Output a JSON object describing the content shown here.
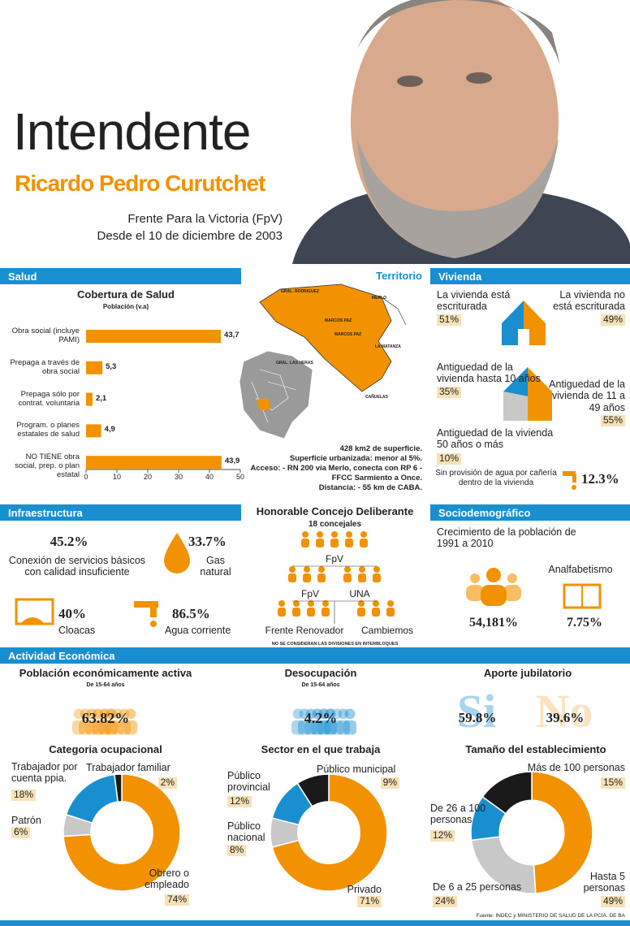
{
  "header": {
    "title": "Intendente",
    "name": "Ricardo Pedro Curutchet",
    "party": "Frente Para la Victoria (FpV)",
    "since": "Desde el 10 de diciembre de 2003"
  },
  "salud": {
    "section": "Salud",
    "chart": {
      "type": "bar",
      "title": "Cobertura de Salud",
      "subtitle": "Población (v.a)",
      "categories": [
        "Obra social (incluye PAMI)",
        "Prepaga a través de obra social",
        "Prepaga sólo por contrat. voluntaria",
        "Program. o planes estatales de salud",
        "NO TIENE obra social, prep. o plan estatal"
      ],
      "values": [
        43.7,
        5.3,
        2.1,
        4.9,
        43.9
      ],
      "value_labels": [
        "43,7",
        "5,3",
        "2,1",
        "4,9",
        "43,9"
      ],
      "xlim": [
        0,
        50
      ],
      "xticks": [
        0,
        10,
        20,
        30,
        40,
        50
      ],
      "color": "#f39200"
    }
  },
  "territorio": {
    "section": "Territorio",
    "map_labels": [
      "GRAL. RODRIGUEZ",
      "MERLO",
      "MARCOS PAZ",
      "MARCOS PAZ",
      "LA MATANZA",
      "GRAL. LAS HERAS",
      "CAÑUELAS"
    ],
    "facts": [
      "428 km2 de superficie.",
      "Superficie urbanizada: menor al 5%.",
      "Acceso: - RN 200 vía Merlo, conecta con RP 6 -",
      "FFCC Sarmiento a Once.",
      "Distancia: - 55 km de CABA."
    ]
  },
  "vivienda": {
    "section": "Vivienda",
    "items": [
      {
        "label": "La vivienda está escriturada",
        "value": "51%"
      },
      {
        "label": "La vivienda no está escriturada",
        "value": "49%"
      },
      {
        "label": "Antiguedad de la vivienda hasta 10 años",
        "value": "35%"
      },
      {
        "label": "Antiguedad de la vivienda de 11 a 49 años",
        "value": "55%"
      },
      {
        "label": "Antiguedad de la vivienda 50 años o más",
        "value": "10%"
      }
    ],
    "water": {
      "label": "Sin provisión de agua por cañería dentro de la vivienda",
      "value": "12.3%"
    }
  },
  "infraestructura": {
    "section": "Infraestructura",
    "items": [
      {
        "value": "45.2%",
        "label": "Conexión de servicios básicos con calidad insuficiente"
      },
      {
        "value": "33.7%",
        "label": "Gas natural"
      },
      {
        "value": "40%",
        "label": "Cloacas"
      },
      {
        "value": "86.5%",
        "label": "Agua corriente"
      }
    ]
  },
  "concejo": {
    "title": "Honorable Concejo Deliberante",
    "subtitle": "18 concejales",
    "blocs": [
      "FpV",
      "FpV",
      "UNA",
      "Frente Renovador",
      "Cambiemos"
    ],
    "note": "NO SE CONSIDERAN LAS DIVISIONES EN INTERBLOQUES"
  },
  "sociodemografico": {
    "section": "Sociodemográfico",
    "growth_label": "Crecimiento de la población de 1991 a 2010",
    "growth_value": "54,181%",
    "literacy_label": "Analfabetismo",
    "literacy_value": "7.75%"
  },
  "actividad": {
    "section": "Actividad Económica",
    "pea": {
      "title": "Población económicamente activa",
      "subtitle": "De 15-64 años",
      "value": "63.82%"
    },
    "desocupacion": {
      "title": "Desocupación",
      "subtitle": "De 15-64 años",
      "value": "4.2%"
    },
    "aporte": {
      "title": "Aporte jubilatorio",
      "yes": "Si",
      "yes_value": "59.8%",
      "no": "No",
      "no_value": "39.6%"
    },
    "donuts": [
      {
        "type": "pie",
        "title": "Categoria ocupacional",
        "categories": [
          "Obrero o empleado",
          "Patrón",
          "Trabajador por cuenta ppia.",
          "Trabajador familiar"
        ],
        "values": [
          74,
          6,
          18,
          2
        ],
        "value_labels": [
          "74%",
          "6%",
          "18%",
          "2%"
        ],
        "colors": [
          "#f39200",
          "#c8c8c8",
          "#1a8fd0",
          "#1a1a1a"
        ]
      },
      {
        "type": "pie",
        "title": "Sector en el que trabaja",
        "categories": [
          "Privado",
          "Público nacional",
          "Público provincial",
          "Público municipal"
        ],
        "values": [
          71,
          8,
          12,
          9
        ],
        "value_labels": [
          "71%",
          "8%",
          "12%",
          "9%"
        ],
        "colors": [
          "#f39200",
          "#c8c8c8",
          "#1a8fd0",
          "#1a1a1a"
        ]
      },
      {
        "type": "pie",
        "title": "Tamaño del establecimiento",
        "categories": [
          "Hasta 5 personas",
          "De 6 a 25 personas",
          "De 26 a 100 personas",
          "Más de 100 personas"
        ],
        "values": [
          49,
          24,
          12,
          15
        ],
        "value_labels": [
          "49%",
          "24%",
          "12%",
          "15%"
        ],
        "colors": [
          "#f39200",
          "#c8c8c8",
          "#1a8fd0",
          "#1a1a1a"
        ]
      }
    ]
  },
  "source": "Fuente: INDEC y MINISTERIO DE SALUD DE LA PCIA. DE BA"
}
